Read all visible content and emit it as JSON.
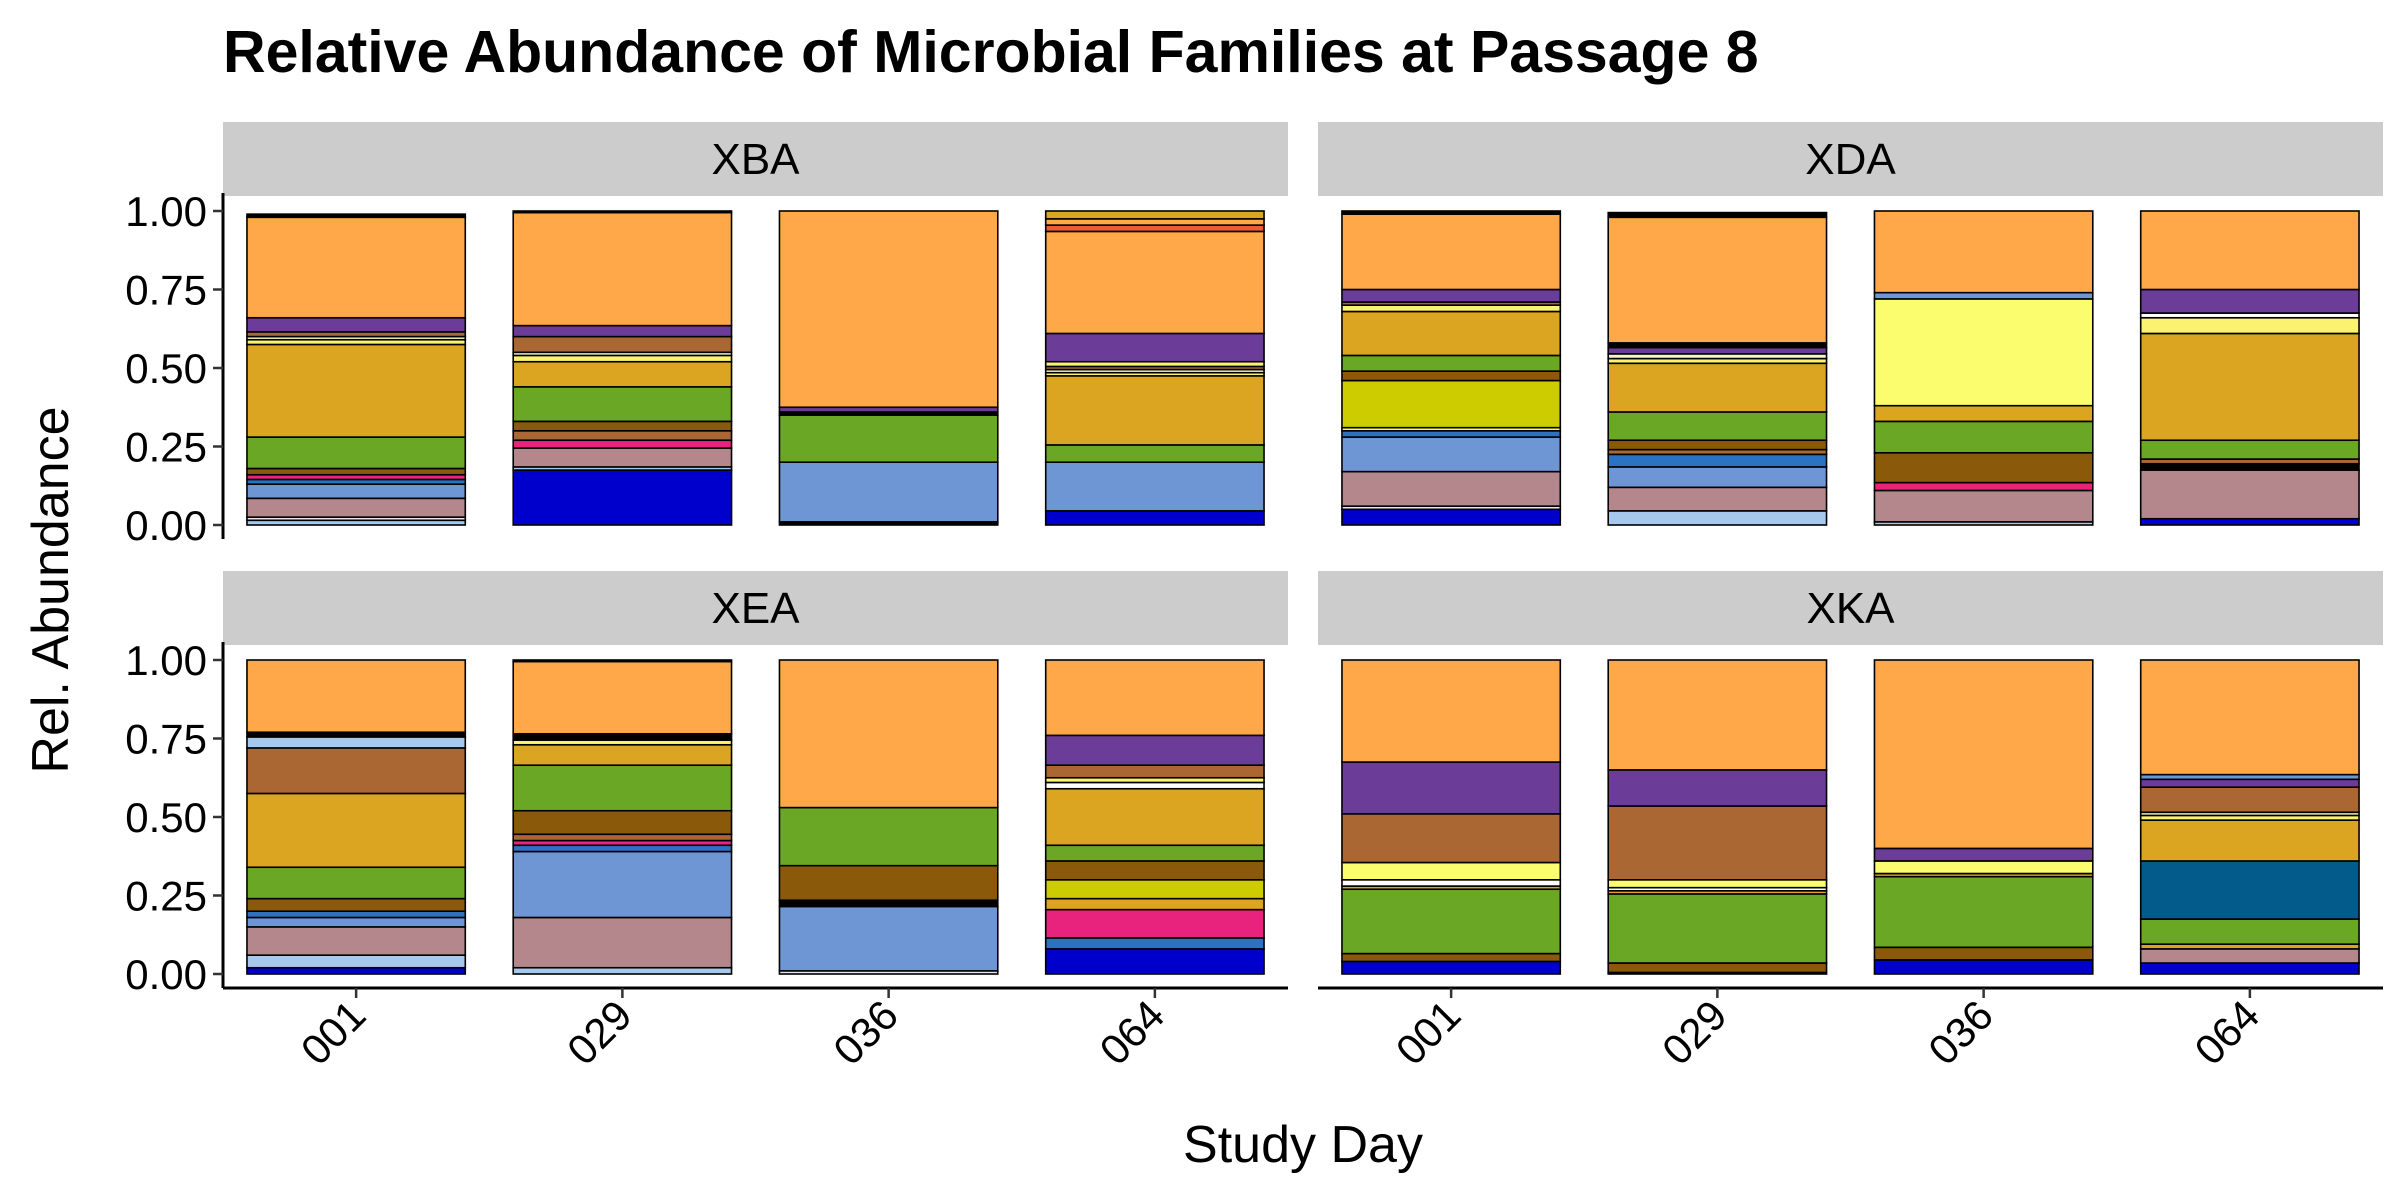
{
  "chart_data": {
    "type": "bar",
    "stacked": true,
    "title": "Relative Abundance of Microbial Families at Passage 8",
    "xlabel": "Study Day",
    "ylabel": "Rel. Abundance",
    "ylim": [
      0,
      1
    ],
    "yticks": [
      "0.00",
      "0.25",
      "0.50",
      "0.75",
      "1.00"
    ],
    "categories": [
      "001",
      "029",
      "036",
      "064"
    ],
    "legend": "none",
    "grid": false,
    "panels": [
      {
        "label": "XBA",
        "bars": [
          [
            {
              "value": 0.015,
              "color": "#a6c8ec"
            },
            {
              "value": 0.01,
              "color": "#e8e8e8"
            },
            {
              "value": 0.06,
              "color": "#b4878c"
            },
            {
              "value": 0.045,
              "color": "#6f96d4"
            },
            {
              "value": 0.015,
              "color": "#2b73c2"
            },
            {
              "value": 0.015,
              "color": "#e8237d"
            },
            {
              "value": 0.02,
              "color": "#8a5a0a"
            },
            {
              "value": 0.1,
              "color": "#6aa725"
            },
            {
              "value": 0.295,
              "color": "#dba521"
            },
            {
              "value": 0.015,
              "color": "#fbf36f"
            },
            {
              "value": 0.01,
              "color": "#f4f4c2"
            },
            {
              "value": 0.015,
              "color": "#ab6733"
            },
            {
              "value": 0.045,
              "color": "#6b3d99"
            },
            {
              "value": 0.32,
              "color": "#fea84a"
            },
            {
              "value": 0.01,
              "color": "#000000"
            }
          ],
          [
            {
              "value": 0.175,
              "color": "#0000cc"
            },
            {
              "value": 0.01,
              "color": "#a6c8ec"
            },
            {
              "value": 0.06,
              "color": "#b4878c"
            },
            {
              "value": 0.025,
              "color": "#e8237d"
            },
            {
              "value": 0.03,
              "color": "#ab6733"
            },
            {
              "value": 0.03,
              "color": "#8a5a0a"
            },
            {
              "value": 0.11,
              "color": "#6aa725"
            },
            {
              "value": 0.08,
              "color": "#dba521"
            },
            {
              "value": 0.02,
              "color": "#fbf36f"
            },
            {
              "value": 0.01,
              "color": "#f4f4c2"
            },
            {
              "value": 0.05,
              "color": "#ab6733"
            },
            {
              "value": 0.035,
              "color": "#6b3d99"
            },
            {
              "value": 0.36,
              "color": "#fea84a"
            },
            {
              "value": 0.005,
              "color": "#000000"
            }
          ],
          [
            {
              "value": 0.01,
              "color": "#000000"
            },
            {
              "value": 0.19,
              "color": "#6f96d4"
            },
            {
              "value": 0.15,
              "color": "#6aa725"
            },
            {
              "value": 0.01,
              "color": "#000000"
            },
            {
              "value": 0.015,
              "color": "#6b3d99"
            },
            {
              "value": 0.625,
              "color": "#fea84a"
            }
          ],
          [
            {
              "value": 0.045,
              "color": "#0000cc"
            },
            {
              "value": 0.155,
              "color": "#6f96d4"
            },
            {
              "value": 0.055,
              "color": "#6aa725"
            },
            {
              "value": 0.22,
              "color": "#dba521"
            },
            {
              "value": 0.01,
              "color": "#fbf36f"
            },
            {
              "value": 0.01,
              "color": "#f4f4c2"
            },
            {
              "value": 0.01,
              "color": "#ab6733"
            },
            {
              "value": 0.015,
              "color": "#fbf36f"
            },
            {
              "value": 0.09,
              "color": "#6b3d99"
            },
            {
              "value": 0.325,
              "color": "#fea84a"
            },
            {
              "value": 0.02,
              "color": "#ef5a3b"
            },
            {
              "value": 0.02,
              "color": "#fea84a"
            },
            {
              "value": 0.025,
              "color": "#dba521"
            }
          ]
        ]
      },
      {
        "label": "XDA",
        "bars": [
          [
            {
              "value": 0.05,
              "color": "#0000cc"
            },
            {
              "value": 0.01,
              "color": "#e8e8e8"
            },
            {
              "value": 0.11,
              "color": "#b4878c"
            },
            {
              "value": 0.11,
              "color": "#6f96d4"
            },
            {
              "value": 0.02,
              "color": "#2b73c2"
            },
            {
              "value": 0.01,
              "color": "#fbf36f"
            },
            {
              "value": 0.15,
              "color": "#cccc00"
            },
            {
              "value": 0.03,
              "color": "#8a5a0a"
            },
            {
              "value": 0.05,
              "color": "#6aa725"
            },
            {
              "value": 0.14,
              "color": "#dba521"
            },
            {
              "value": 0.02,
              "color": "#fbf36f"
            },
            {
              "value": 0.01,
              "color": "#ab6733"
            },
            {
              "value": 0.04,
              "color": "#6b3d99"
            },
            {
              "value": 0.24,
              "color": "#fea84a"
            },
            {
              "value": 0.01,
              "color": "#000000"
            }
          ],
          [
            {
              "value": 0.045,
              "color": "#a6c8ec"
            },
            {
              "value": 0.075,
              "color": "#b4878c"
            },
            {
              "value": 0.065,
              "color": "#6f96d4"
            },
            {
              "value": 0.04,
              "color": "#2b73c2"
            },
            {
              "value": 0.015,
              "color": "#ab6733"
            },
            {
              "value": 0.03,
              "color": "#8a5a0a"
            },
            {
              "value": 0.09,
              "color": "#6aa725"
            },
            {
              "value": 0.155,
              "color": "#dba521"
            },
            {
              "value": 0.015,
              "color": "#fbf36f"
            },
            {
              "value": 0.015,
              "color": "#f4f4c2"
            },
            {
              "value": 0.02,
              "color": "#6b3d99"
            },
            {
              "value": 0.015,
              "color": "#000000"
            },
            {
              "value": 0.4,
              "color": "#fea84a"
            },
            {
              "value": 0.015,
              "color": "#000000"
            }
          ],
          [
            {
              "value": 0.01,
              "color": "#a6c8ec"
            },
            {
              "value": 0.1,
              "color": "#b4878c"
            },
            {
              "value": 0.025,
              "color": "#e8237d"
            },
            {
              "value": 0.095,
              "color": "#8a5a0a"
            },
            {
              "value": 0.1,
              "color": "#6aa725"
            },
            {
              "value": 0.05,
              "color": "#dba521"
            },
            {
              "value": 0.34,
              "color": "#fbfd6f"
            },
            {
              "value": 0.02,
              "color": "#6f96d4"
            },
            {
              "value": 0.26,
              "color": "#fea84a"
            }
          ],
          [
            {
              "value": 0.02,
              "color": "#0000cc"
            },
            {
              "value": 0.155,
              "color": "#b4878c"
            },
            {
              "value": 0.02,
              "color": "#000000"
            },
            {
              "value": 0.015,
              "color": "#ab6733"
            },
            {
              "value": 0.06,
              "color": "#6aa725"
            },
            {
              "value": 0.34,
              "color": "#dba521"
            },
            {
              "value": 0.05,
              "color": "#fbf36f"
            },
            {
              "value": 0.015,
              "color": "#ffffff"
            },
            {
              "value": 0.075,
              "color": "#6b3d99"
            },
            {
              "value": 0.25,
              "color": "#fea84a"
            }
          ]
        ]
      },
      {
        "label": "XEA",
        "bars": [
          [
            {
              "value": 0.02,
              "color": "#0000cc"
            },
            {
              "value": 0.04,
              "color": "#a6c8ec"
            },
            {
              "value": 0.09,
              "color": "#b4878c"
            },
            {
              "value": 0.03,
              "color": "#6f96d4"
            },
            {
              "value": 0.02,
              "color": "#2b73c2"
            },
            {
              "value": 0.04,
              "color": "#8a5a0a"
            },
            {
              "value": 0.1,
              "color": "#6aa725"
            },
            {
              "value": 0.235,
              "color": "#dba521"
            },
            {
              "value": 0.145,
              "color": "#ab6733"
            },
            {
              "value": 0.035,
              "color": "#a6c8ec"
            },
            {
              "value": 0.015,
              "color": "#000000"
            },
            {
              "value": 0.23,
              "color": "#fea84a"
            }
          ],
          [
            {
              "value": 0.02,
              "color": "#a6c8ec"
            },
            {
              "value": 0.16,
              "color": "#b4878c"
            },
            {
              "value": 0.21,
              "color": "#6f96d4"
            },
            {
              "value": 0.02,
              "color": "#2b73c2"
            },
            {
              "value": 0.015,
              "color": "#e8237d"
            },
            {
              "value": 0.02,
              "color": "#ab6733"
            },
            {
              "value": 0.075,
              "color": "#8a5a0a"
            },
            {
              "value": 0.145,
              "color": "#6aa725"
            },
            {
              "value": 0.065,
              "color": "#dba521"
            },
            {
              "value": 0.015,
              "color": "#fbf36f"
            },
            {
              "value": 0.02,
              "color": "#000000"
            },
            {
              "value": 0.23,
              "color": "#fea84a"
            },
            {
              "value": 0.005,
              "color": "#000000"
            }
          ],
          [
            {
              "value": 0.01,
              "color": "#e8e8e8"
            },
            {
              "value": 0.205,
              "color": "#6f96d4"
            },
            {
              "value": 0.02,
              "color": "#000000"
            },
            {
              "value": 0.11,
              "color": "#8a5a0a"
            },
            {
              "value": 0.185,
              "color": "#6aa725"
            },
            {
              "value": 0.47,
              "color": "#fea84a"
            }
          ],
          [
            {
              "value": 0.08,
              "color": "#0000cc"
            },
            {
              "value": 0.035,
              "color": "#2b73c2"
            },
            {
              "value": 0.09,
              "color": "#e8237d"
            },
            {
              "value": 0.035,
              "color": "#dba521"
            },
            {
              "value": 0.06,
              "color": "#cccc00"
            },
            {
              "value": 0.06,
              "color": "#8a5a0a"
            },
            {
              "value": 0.05,
              "color": "#6aa725"
            },
            {
              "value": 0.18,
              "color": "#dba521"
            },
            {
              "value": 0.02,
              "color": "#ffffff"
            },
            {
              "value": 0.015,
              "color": "#fbf36f"
            },
            {
              "value": 0.04,
              "color": "#ab6733"
            },
            {
              "value": 0.095,
              "color": "#6b3d99"
            },
            {
              "value": 0.24,
              "color": "#fea84a"
            }
          ]
        ]
      },
      {
        "label": "XKA",
        "bars": [
          [
            {
              "value": 0.04,
              "color": "#0000cc"
            },
            {
              "value": 0.025,
              "color": "#8a5a0a"
            },
            {
              "value": 0.205,
              "color": "#6aa725"
            },
            {
              "value": 0.01,
              "color": "#dba521"
            },
            {
              "value": 0.02,
              "color": "#ffffff"
            },
            {
              "value": 0.055,
              "color": "#fbfd6f"
            },
            {
              "value": 0.155,
              "color": "#ab6733"
            },
            {
              "value": 0.165,
              "color": "#6b3d99"
            },
            {
              "value": 0.325,
              "color": "#fea84a"
            }
          ],
          [
            {
              "value": 0.005,
              "color": "#0000cc"
            },
            {
              "value": 0.03,
              "color": "#8a5a0a"
            },
            {
              "value": 0.22,
              "color": "#6aa725"
            },
            {
              "value": 0.01,
              "color": "#dba521"
            },
            {
              "value": 0.01,
              "color": "#ffffff"
            },
            {
              "value": 0.025,
              "color": "#fbfd6f"
            },
            {
              "value": 0.235,
              "color": "#ab6733"
            },
            {
              "value": 0.115,
              "color": "#6b3d99"
            },
            {
              "value": 0.35,
              "color": "#fea84a"
            }
          ],
          [
            {
              "value": 0.045,
              "color": "#0000cc"
            },
            {
              "value": 0.04,
              "color": "#8a5a0a"
            },
            {
              "value": 0.225,
              "color": "#6aa725"
            },
            {
              "value": 0.01,
              "color": "#dba521"
            },
            {
              "value": 0.04,
              "color": "#fbfd6f"
            },
            {
              "value": 0.04,
              "color": "#6b3d99"
            },
            {
              "value": 0.6,
              "color": "#fea84a"
            }
          ],
          [
            {
              "value": 0.035,
              "color": "#0000cc"
            },
            {
              "value": 0.045,
              "color": "#b4878c"
            },
            {
              "value": 0.015,
              "color": "#dba521"
            },
            {
              "value": 0.08,
              "color": "#6aa725"
            },
            {
              "value": 0.185,
              "color": "#025b8a"
            },
            {
              "value": 0.13,
              "color": "#dba521"
            },
            {
              "value": 0.015,
              "color": "#fbf36f"
            },
            {
              "value": 0.01,
              "color": "#f4f4c2"
            },
            {
              "value": 0.08,
              "color": "#ab6733"
            },
            {
              "value": 0.025,
              "color": "#6b3d99"
            },
            {
              "value": 0.015,
              "color": "#6f96d4"
            },
            {
              "value": 0.365,
              "color": "#fea84a"
            }
          ]
        ]
      }
    ]
  }
}
